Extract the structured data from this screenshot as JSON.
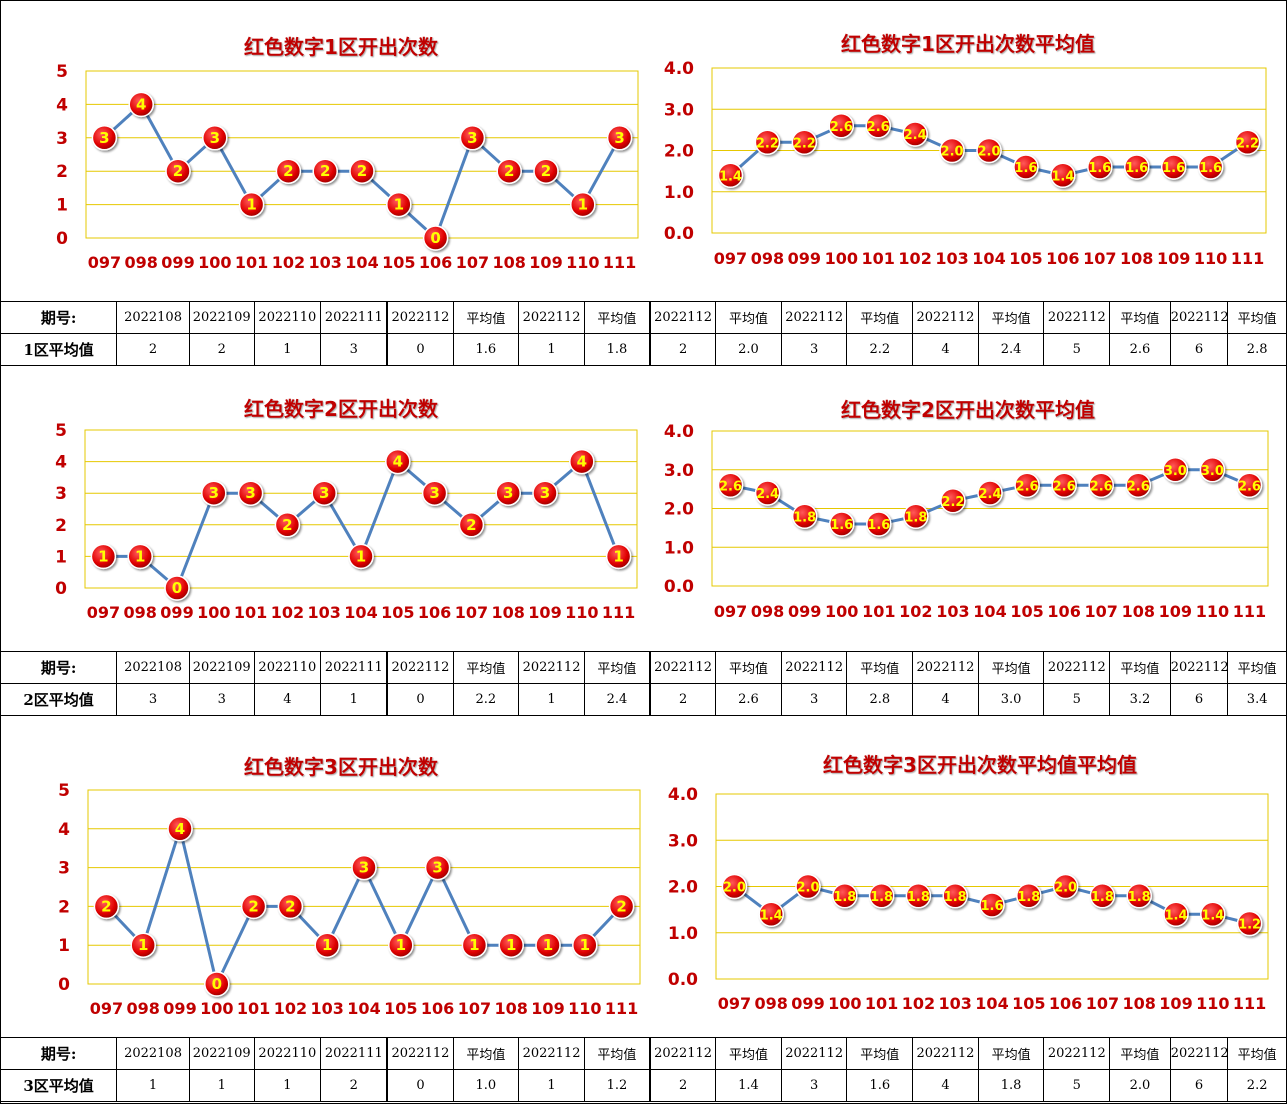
{
  "sections": [
    {
      "charts": [
        {
          "title": "红色数字1区开出次数",
          "type": "line",
          "categories": [
            "097",
            "098",
            "099",
            "100",
            "101",
            "102",
            "103",
            "104",
            "105",
            "106",
            "107",
            "108",
            "109",
            "110",
            "111"
          ],
          "values": [
            3,
            4,
            2,
            3,
            1,
            2,
            2,
            2,
            1,
            0,
            3,
            2,
            2,
            1,
            3
          ],
          "yticks": [
            "0",
            "1",
            "2",
            "3",
            "4",
            "5"
          ],
          "ylim": [
            0,
            5
          ],
          "decimals": 0
        },
        {
          "title": "红色数字1区开出次数平均值",
          "type": "line",
          "categories": [
            "097",
            "098",
            "099",
            "100",
            "101",
            "102",
            "103",
            "104",
            "105",
            "106",
            "107",
            "108",
            "109",
            "110",
            "111"
          ],
          "values": [
            1.4,
            2.2,
            2.2,
            2.6,
            2.6,
            2.4,
            2.0,
            2.0,
            1.6,
            1.4,
            1.6,
            1.6,
            1.6,
            1.6,
            2.2
          ],
          "yticks": [
            "0.0",
            "1.0",
            "2.0",
            "3.0",
            "4.0"
          ],
          "ylim": [
            0,
            4
          ],
          "decimals": 1
        }
      ],
      "table": {
        "header": [
          "期号:",
          "2022108",
          "2022109",
          "2022110",
          "2022111",
          "2022112",
          "平均值",
          "2022112",
          "平均值",
          "2022112",
          "平均值",
          "2022112",
          "平均值",
          "2022112",
          "平均值",
          "2022112",
          "平均值",
          "2022112",
          "平均值"
        ],
        "row": [
          "1区平均值",
          "2",
          "2",
          "1",
          "3",
          "0",
          "1.6",
          "1",
          "1.8",
          "2",
          "2.0",
          "3",
          "2.2",
          "4",
          "2.4",
          "5",
          "2.6",
          "6",
          "2.8"
        ]
      }
    },
    {
      "charts": [
        {
          "title": "红色数字2区开出次数",
          "type": "line",
          "categories": [
            "097",
            "098",
            "099",
            "100",
            "101",
            "102",
            "103",
            "104",
            "105",
            "106",
            "107",
            "108",
            "109",
            "110",
            "111"
          ],
          "values": [
            1,
            1,
            0,
            3,
            3,
            2,
            3,
            1,
            4,
            3,
            2,
            3,
            3,
            4,
            1
          ],
          "yticks": [
            "0",
            "1",
            "2",
            "3",
            "4",
            "5"
          ],
          "ylim": [
            0,
            5
          ],
          "decimals": 0
        },
        {
          "title": "红色数字2区开出次数平均值",
          "type": "line",
          "categories": [
            "097",
            "098",
            "099",
            "100",
            "101",
            "102",
            "103",
            "104",
            "105",
            "106",
            "107",
            "108",
            "109",
            "110",
            "111"
          ],
          "values": [
            2.6,
            2.4,
            1.8,
            1.6,
            1.6,
            1.8,
            2.2,
            2.4,
            2.6,
            2.6,
            2.6,
            2.6,
            3.0,
            3.0,
            2.6
          ],
          "yticks": [
            "0.0",
            "1.0",
            "2.0",
            "3.0",
            "4.0"
          ],
          "ylim": [
            0,
            4
          ],
          "decimals": 1
        }
      ],
      "table": {
        "header": [
          "期号:",
          "2022108",
          "2022109",
          "2022110",
          "2022111",
          "2022112",
          "平均值",
          "2022112",
          "平均值",
          "2022112",
          "平均值",
          "2022112",
          "平均值",
          "2022112",
          "平均值",
          "2022112",
          "平均值",
          "2022112",
          "平均值"
        ],
        "row": [
          "2区平均值",
          "3",
          "3",
          "4",
          "1",
          "0",
          "2.2",
          "1",
          "2.4",
          "2",
          "2.6",
          "3",
          "2.8",
          "4",
          "3.0",
          "5",
          "3.2",
          "6",
          "3.4"
        ]
      }
    },
    {
      "charts": [
        {
          "title": "红色数字3区开出次数",
          "type": "line",
          "categories": [
            "097",
            "098",
            "099",
            "100",
            "101",
            "102",
            "103",
            "104",
            "105",
            "106",
            "107",
            "108",
            "109",
            "110",
            "111"
          ],
          "values": [
            2,
            1,
            4,
            0,
            2,
            2,
            1,
            3,
            1,
            3,
            1,
            1,
            1,
            1,
            2
          ],
          "yticks": [
            "0",
            "1",
            "2",
            "3",
            "4",
            "5"
          ],
          "ylim": [
            0,
            5
          ],
          "decimals": 0
        },
        {
          "title": "红色数字3区开出次数平均值平均值",
          "type": "line",
          "categories": [
            "097",
            "098",
            "099",
            "100",
            "101",
            "102",
            "103",
            "104",
            "105",
            "106",
            "107",
            "108",
            "109",
            "110",
            "111"
          ],
          "values": [
            2.0,
            1.4,
            2.0,
            1.8,
            1.8,
            1.8,
            1.8,
            1.6,
            1.8,
            2.0,
            1.8,
            1.8,
            1.4,
            1.4,
            1.2
          ],
          "yticks": [
            "0.0",
            "1.0",
            "2.0",
            "3.0",
            "4.0"
          ],
          "ylim": [
            0,
            4
          ],
          "decimals": 1
        }
      ],
      "table": {
        "header": [
          "期号:",
          "2022108",
          "2022109",
          "2022110",
          "2022111",
          "2022112",
          "平均值",
          "2022112",
          "平均值",
          "2022112",
          "平均值",
          "2022112",
          "平均值",
          "2022112",
          "平均值",
          "2022112",
          "平均值",
          "2022112",
          "平均值"
        ],
        "row": [
          "3区平均值",
          "1",
          "1",
          "1",
          "2",
          "0",
          "1.0",
          "1",
          "1.2",
          "2",
          "1.4",
          "3",
          "1.6",
          "4",
          "1.8",
          "5",
          "2.0",
          "6",
          "2.2"
        ]
      }
    }
  ],
  "colors": {
    "line": "#4f81bd",
    "marker": "#e00000",
    "marker_text": "#ffff00",
    "grid": "#e6c800",
    "title": "#c00000",
    "axis_label": "#c00000"
  }
}
